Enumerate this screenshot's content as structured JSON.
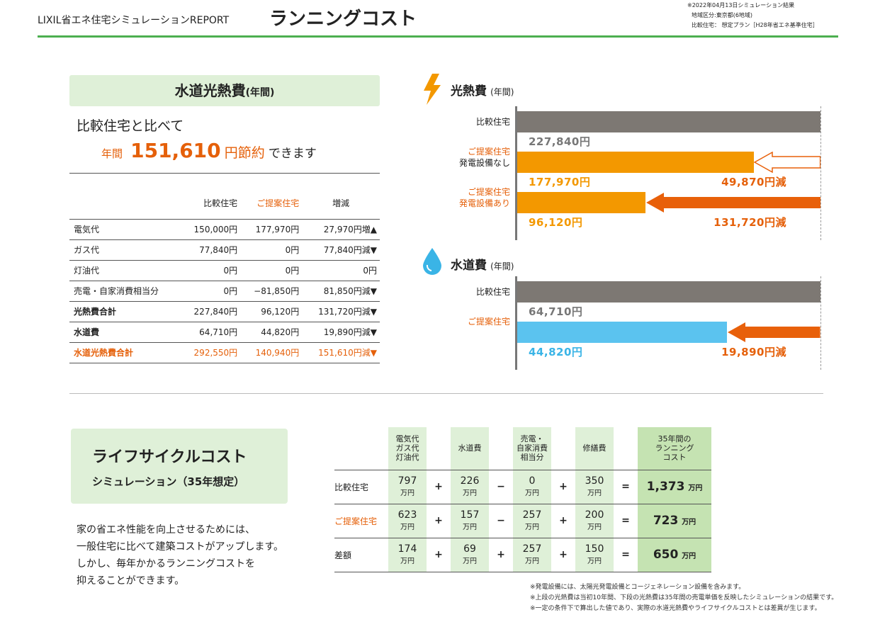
{
  "header": {
    "brand": "LIXIL省エネ住宅シミュレーションREPORT",
    "title": "ランニングコスト",
    "info": [
      "※2022年04月13日シミュレーション結果",
      "地域区分:東京都(6地域)",
      "比較住宅： 想定プラン［H28年省エネ基準住宅］"
    ]
  },
  "utility": {
    "title": "水道光熱費",
    "title_suffix": "(年間)",
    "compare": "比較住宅と比べて",
    "annual": "年間",
    "saving": "151,610",
    "saving_unit": "円節約",
    "saving_tail": "できます",
    "columns": [
      "",
      "比較住宅",
      "ご提案住宅",
      "増減"
    ],
    "rows": [
      [
        "電気代",
        "150,000円",
        "177,970円",
        "27,970円増▲"
      ],
      [
        "ガス代",
        "77,840円",
        "0円",
        "77,840円減▼"
      ],
      [
        "灯油代",
        "0円",
        "0円",
        "0円"
      ],
      [
        "売電・自家消費相当分",
        "0円",
        "−81,850円",
        "81,850円減▼"
      ],
      [
        "光熱費合計",
        "227,840円",
        "96,120円",
        "131,720円減▼"
      ],
      [
        "水道費",
        "64,710円",
        "44,820円",
        "19,890円減▼"
      ],
      [
        "水道光熱費合計",
        "292,550円",
        "140,940円",
        "151,610円減▼"
      ]
    ]
  },
  "chart_data": [
    {
      "type": "bar",
      "orientation": "horizontal",
      "title": "光熱費",
      "title_suffix": "(年間)",
      "categories": [
        "比較住宅",
        "ご提案住宅 発電設備なし",
        "ご提案住宅 発電設備あり"
      ],
      "values": [
        227840,
        177970,
        96120
      ],
      "value_labels": [
        "227,840円",
        "177,970円",
        "96,120円"
      ],
      "reductions": [
        null,
        "49,870円減",
        "131,720円減"
      ],
      "colors": [
        "#7d7873",
        "#f39800",
        "#f39800"
      ]
    },
    {
      "type": "bar",
      "orientation": "horizontal",
      "title": "水道費",
      "title_suffix": "(年間)",
      "categories": [
        "比較住宅",
        "ご提案住宅"
      ],
      "values": [
        64710,
        44820
      ],
      "value_labels": [
        "64,710円",
        "44,820円"
      ],
      "reductions": [
        null,
        "19,890円減"
      ],
      "colors": [
        "#7d7873",
        "#5bc3ef"
      ]
    }
  ],
  "energy_labels": {
    "compare": "比較住宅",
    "prop": "ご提案住宅",
    "no_gen": "発電設備なし",
    "with_gen": "発電設備あり"
  },
  "lifecycle": {
    "title": "ライフサイクルコスト",
    "subtitle": "シミュレーション（35年想定）",
    "desc": [
      "家の省エネ性能を向上させるためには、",
      "一般住宅に比べて建築コストがアップします。",
      "しかし、毎年かかるランニングコストを",
      "抑えることができます。"
    ],
    "headers": [
      "電気代\nガス代\n灯油代",
      "水道費",
      "売電・\n自家消費\n相当分",
      "修繕費",
      "35年間の\nランニング\nコスト"
    ],
    "unit": "万円",
    "rows": [
      {
        "label": "比較住宅",
        "v": [
          "797",
          "226",
          "0",
          "350",
          "1,373"
        ],
        "ops": [
          "+",
          "−",
          "+",
          "="
        ]
      },
      {
        "label": "ご提案住宅",
        "v": [
          "623",
          "157",
          "257",
          "200",
          "723"
        ],
        "ops": [
          "+",
          "−",
          "+",
          "="
        ]
      },
      {
        "label": "差額",
        "v": [
          "174",
          "69",
          "257",
          "150",
          "650"
        ],
        "ops": [
          "+",
          "+",
          "+",
          "="
        ]
      }
    ]
  },
  "notes": [
    "※発電設備には、太陽光発電設備とコージェネレーション設備を含みます。",
    "※上段の光熱費は当初10年間、下段の光熱費は35年間の売電単価を反映したシミュレーションの結果です。",
    "※一定の条件下で算出した値であり、実際の水道光熱費やライフサイクルコストとは差異が生じます。"
  ]
}
